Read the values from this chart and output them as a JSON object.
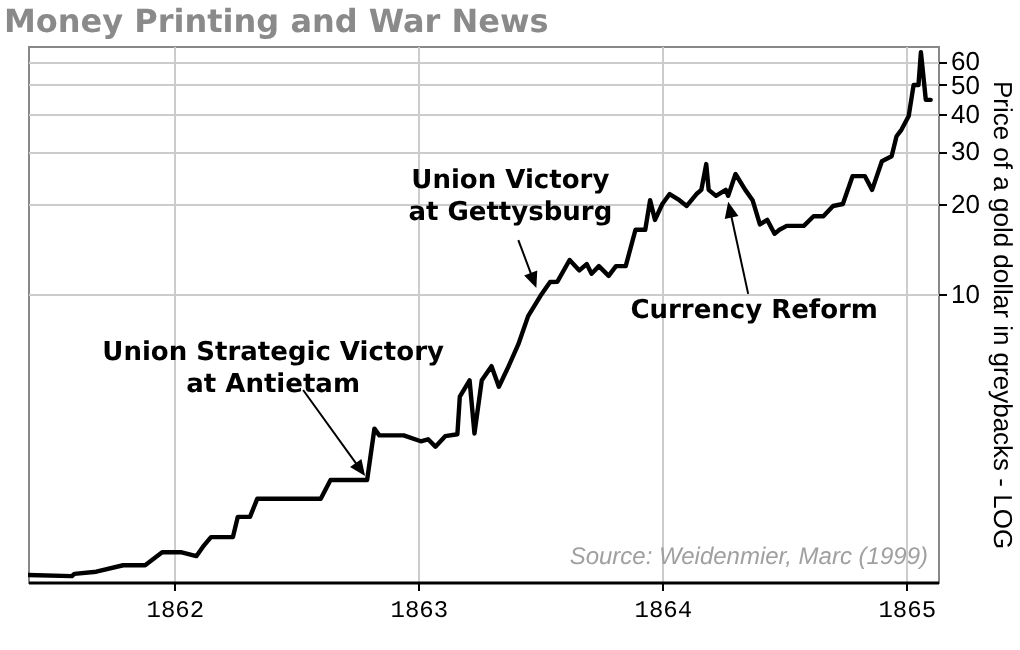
{
  "chart_data": {
    "type": "line",
    "title": "Money Printing and War News",
    "ylabel": "Price of a gold dollar in greybacks - LOG",
    "x": [
      1861.4,
      1861.58,
      1861.59,
      1861.68,
      1861.79,
      1861.88,
      1861.95,
      1862.03,
      1862.09,
      1862.12,
      1862.15,
      1862.24,
      1862.26,
      1862.31,
      1862.34,
      1862.6,
      1862.64,
      1862.79,
      1862.82,
      1862.84,
      1862.94,
      1863.01,
      1863.04,
      1863.07,
      1863.11,
      1863.16,
      1863.17,
      1863.21,
      1863.23,
      1863.26,
      1863.3,
      1863.33,
      1863.37,
      1863.41,
      1863.45,
      1863.5,
      1863.54,
      1863.57,
      1863.62,
      1863.66,
      1863.69,
      1863.71,
      1863.74,
      1863.78,
      1863.81,
      1863.85,
      1863.89,
      1863.93,
      1863.95,
      1863.97,
      1864.0,
      1864.03,
      1864.07,
      1864.1,
      1864.14,
      1864.16,
      1864.18,
      1864.19,
      1864.22,
      1864.26,
      1864.27,
      1864.3,
      1864.34,
      1864.37,
      1864.4,
      1864.43,
      1864.46,
      1864.48,
      1864.51,
      1864.58,
      1864.62,
      1864.66,
      1864.7,
      1864.74,
      1864.78,
      1864.83,
      1864.86,
      1864.9,
      1864.94,
      1864.96,
      1864.98,
      1865.01,
      1865.03,
      1865.05,
      1865.06,
      1865.08,
      1865.1
    ],
    "series": [
      {
        "color": "#000000",
        "values": [
          1.15,
          1.14,
          1.16,
          1.18,
          1.24,
          1.24,
          1.37,
          1.37,
          1.33,
          1.44,
          1.54,
          1.54,
          1.8,
          1.8,
          2.07,
          2.07,
          2.39,
          2.39,
          3.55,
          3.37,
          3.37,
          3.22,
          3.27,
          3.09,
          3.35,
          3.4,
          4.54,
          5.15,
          3.42,
          5.15,
          5.74,
          4.9,
          5.74,
          6.8,
          8.44,
          9.85,
          10.97,
          11.0,
          13.0,
          12.0,
          12.6,
          11.7,
          12.4,
          11.5,
          12.4,
          12.4,
          16.4,
          16.4,
          20.6,
          17.7,
          20.0,
          21.6,
          20.6,
          19.7,
          21.6,
          22.3,
          27.2,
          22.3,
          21.3,
          22.3,
          21.3,
          25.2,
          22.3,
          20.6,
          17.1,
          17.7,
          15.9,
          16.4,
          16.9,
          16.9,
          18.2,
          18.2,
          19.7,
          20.0,
          24.8,
          24.8,
          22.3,
          27.8,
          28.9,
          33.7,
          35.4,
          39.4,
          50,
          50,
          64.4,
          44.6,
          44.6
        ]
      }
    ],
    "xlim": [
      1861.4,
      1865.13
    ],
    "xticks": [
      1862,
      1863,
      1864,
      1865
    ],
    "ylim": [
      1.09,
      67.5
    ],
    "yticks": [
      10,
      20,
      30,
      40,
      50,
      60
    ],
    "log": "y",
    "grid": true,
    "annotations": [
      {
        "text": "Union Strategic Victory\nat Antietam",
        "x": 1862.79,
        "y": 2.39
      },
      {
        "text": "Union Victory\nat Gettysburg",
        "x": 1863.5,
        "y": 9.85
      },
      {
        "text": "Currency Reform",
        "x": 1864.27,
        "y": 21.3
      },
      "Source: Weidenmier, Marc (1999)"
    ]
  }
}
